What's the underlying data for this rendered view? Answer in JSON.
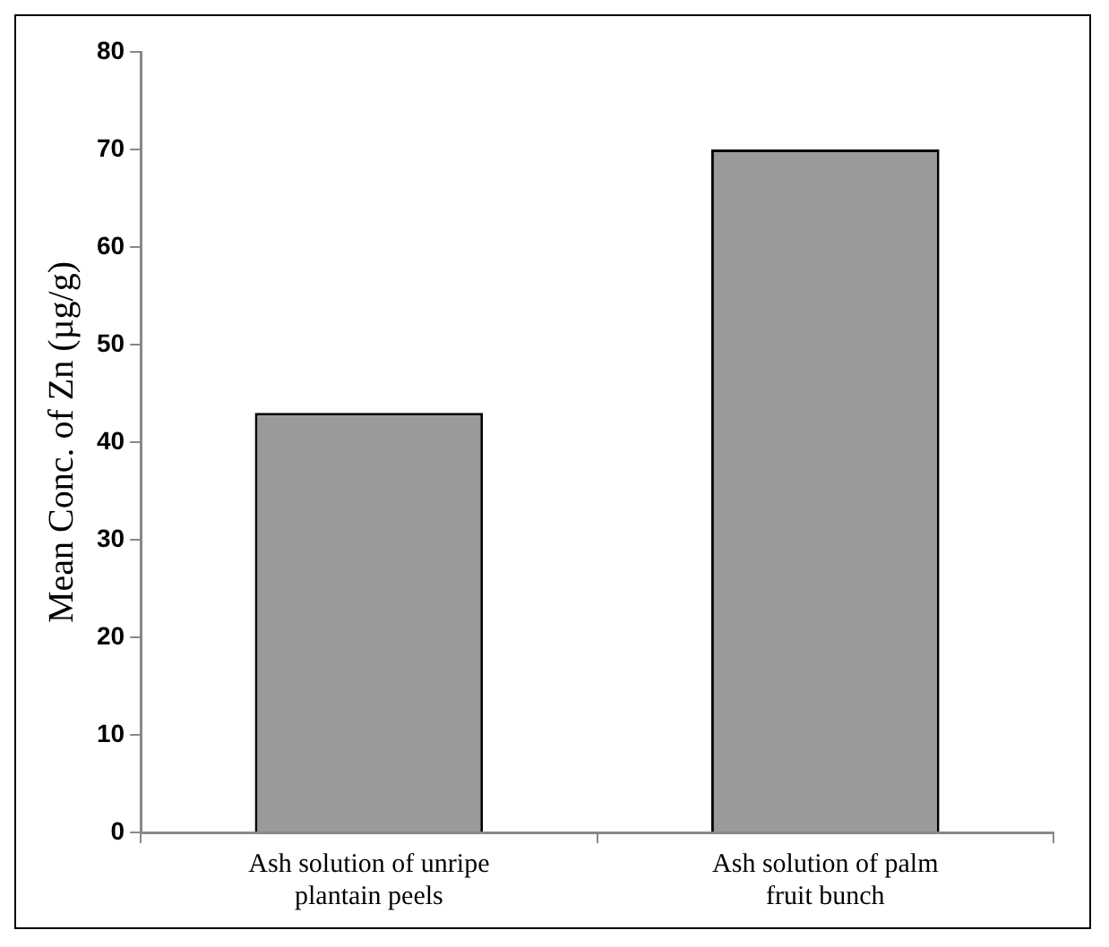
{
  "chart_data": {
    "type": "bar",
    "ylabel": "Mean Conc. of Zn (µg/g)",
    "categories": [
      "Ash solution of unripe plantain peels",
      "Ash solution of palm fruit bunch"
    ],
    "values": [
      43,
      70
    ],
    "color": "#9a9a9a",
    "ylim": [
      0,
      80
    ],
    "yticks": [
      0,
      10,
      20,
      30,
      40,
      50,
      60,
      70,
      80
    ],
    "grid": false,
    "legend": false
  }
}
